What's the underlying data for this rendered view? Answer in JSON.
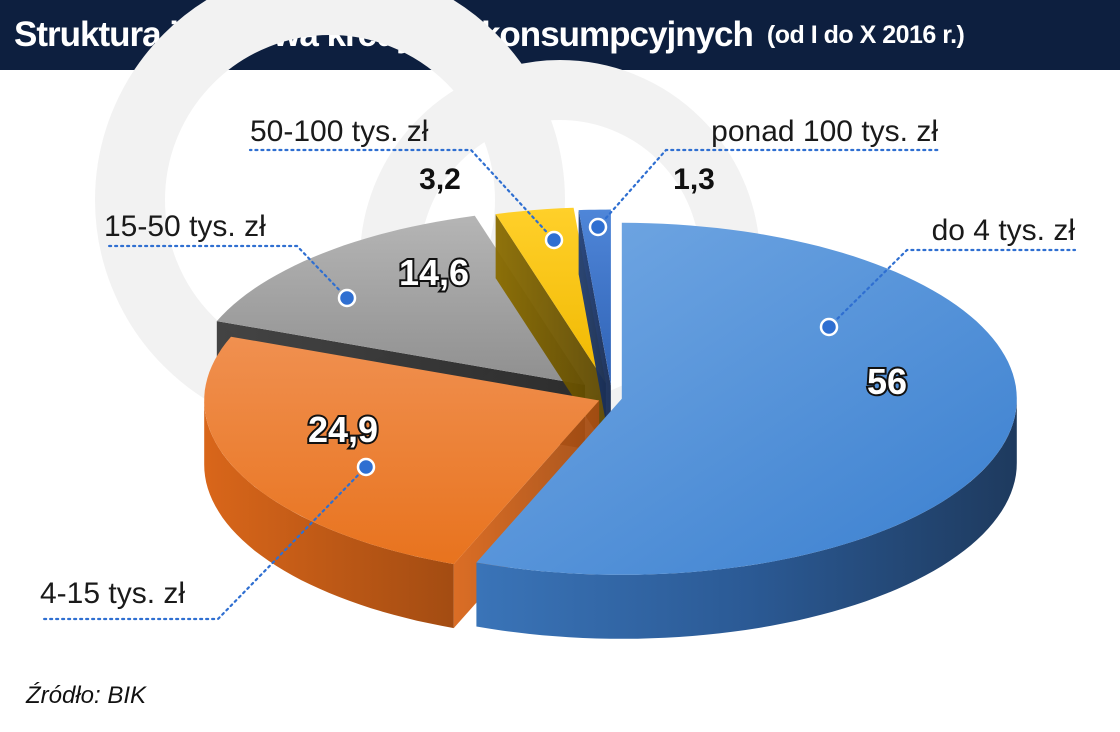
{
  "title": "Struktura ilościowa kredytów konsumpcyjnych",
  "subtitle": "(od I do X 2016 r.)",
  "source": "Źródło: BIK",
  "colors": {
    "title_bg": "#0d1f3f",
    "leader": "#2f6fd1",
    "watermark": "#f1f1f1"
  },
  "chart_data": {
    "type": "pie",
    "style": "3d-exploded",
    "unit": "%",
    "slices": [
      {
        "label": "do 4 tys. zł",
        "value": 56,
        "value_label": "56",
        "color": "#4a8fd6"
      },
      {
        "label": "4-15 tys. zł",
        "value": 24.9,
        "value_label": "24,9",
        "color": "#ee7d31"
      },
      {
        "label": "15-50 tys. zł",
        "value": 14.6,
        "value_label": "14,6",
        "color": "#9c9c9c"
      },
      {
        "label": "50-100 tys. zł",
        "value": 3.2,
        "value_label": "3,2",
        "color": "#f5c200"
      },
      {
        "label": "ponad 100 tys. zł",
        "value": 1.3,
        "value_label": "1,3",
        "color": "#3a6fc4"
      }
    ]
  }
}
